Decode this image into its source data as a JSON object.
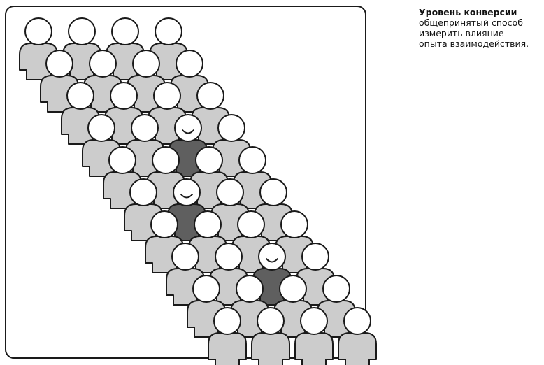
{
  "caption": {
    "term": "Уровень конверсии",
    "dash": " –",
    "lines": [
      "общепринятый способ",
      "измерить влияние",
      "опыта взаимодействия."
    ]
  },
  "crowd": {
    "rows": 10,
    "people_per_row": 4,
    "converted": [
      {
        "row": 3,
        "col": 2
      },
      {
        "row": 5,
        "col": 1
      },
      {
        "row": 7,
        "col": 2
      }
    ],
    "colors": {
      "frame": "#1a1a1a",
      "person_fill": "#cccccc",
      "converted_fill": "#5f5f5f",
      "head_fill": "#ffffff",
      "stroke": "#1a1a1a"
    }
  }
}
